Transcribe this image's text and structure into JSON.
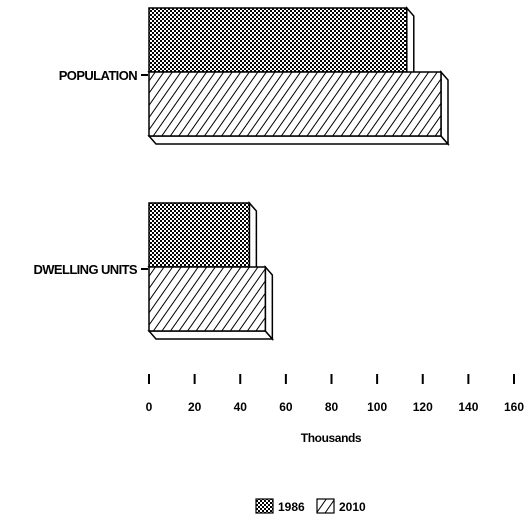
{
  "chart_data": {
    "type": "bar",
    "orientation": "horizontal",
    "style": "3d",
    "categories": [
      "POPULATION",
      "DWELLING UNITS"
    ],
    "series": [
      {
        "name": "1986",
        "values": [
          113,
          44
        ],
        "pattern": "crosshatch-dots"
      },
      {
        "name": "2010",
        "values": [
          128,
          51
        ],
        "pattern": "diagonal-hatch"
      }
    ],
    "xlabel": "Thousands",
    "xlim": [
      0,
      160
    ],
    "xticks": [
      0,
      20,
      40,
      60,
      80,
      100,
      120,
      140,
      160
    ],
    "grid": false,
    "legend_position": "bottom"
  }
}
